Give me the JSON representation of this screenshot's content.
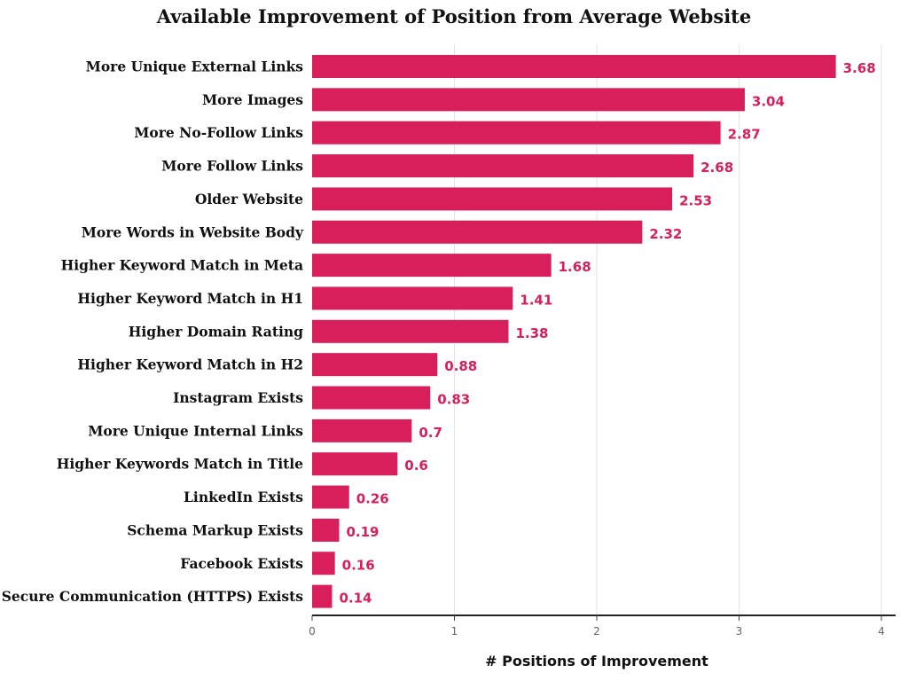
{
  "chart_data": {
    "type": "bar",
    "orientation": "horizontal",
    "title": "Available Improvement of Position from Average Website",
    "xlabel": "# Positions of Improvement",
    "ylabel": "",
    "xlim": [
      0,
      4
    ],
    "xticks": [
      0,
      1,
      2,
      3,
      4
    ],
    "grid": "vertical",
    "bar_color": "#d81e5b",
    "label_color": "#d81e5b",
    "categories": [
      "More Unique External Links",
      "More Images",
      "More No-Follow Links",
      "More Follow Links",
      "Older Website",
      "More Words in Website Body",
      "Higher Keyword Match in Meta",
      "Higher Keyword Match in H1",
      "Higher Domain Rating",
      "Higher Keyword Match in H2",
      "Instagram Exists",
      "More Unique Internal Links",
      "Higher Keywords Match in Title",
      "LinkedIn Exists",
      "Schema Markup Exists",
      "Facebook Exists",
      "Secure Communication (HTTPS) Exists"
    ],
    "values": [
      3.68,
      3.04,
      2.87,
      2.68,
      2.53,
      2.32,
      1.68,
      1.41,
      1.38,
      0.88,
      0.83,
      0.7,
      0.6,
      0.26,
      0.19,
      0.16,
      0.14
    ],
    "value_labels": [
      "3.68",
      "3.04",
      "2.87",
      "2.68",
      "2.53",
      "2.32",
      "1.68",
      "1.41",
      "1.38",
      "0.88",
      "0.83",
      "0.7",
      "0.6",
      "0.26",
      "0.19",
      "0.16",
      "0.14"
    ]
  }
}
